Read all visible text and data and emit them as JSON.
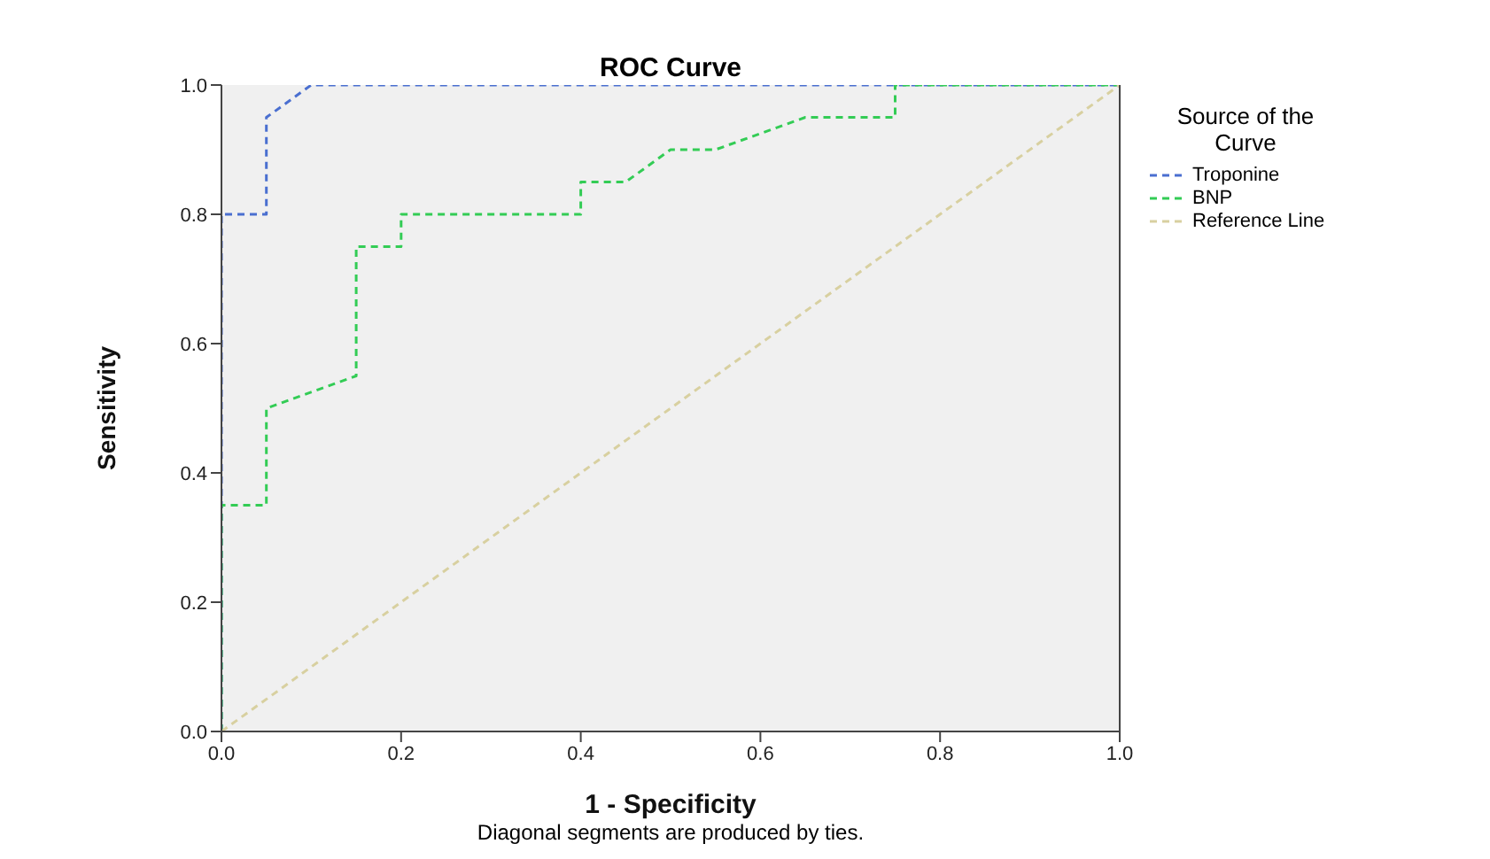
{
  "chart_data": {
    "type": "line",
    "title": "ROC Curve",
    "xlabel": "1 - Specificity",
    "ylabel": "Sensitivity",
    "legend_title": "Source of the Curve",
    "annotations": [
      "Diagonal segments are produced by ties."
    ],
    "series": [
      {
        "name": "Troponine",
        "color": "#4a6fd0",
        "x": [
          0,
          0,
          0.05,
          0.05,
          0.1,
          1
        ],
        "values": [
          0,
          0.8,
          0.8,
          0.95,
          1,
          1
        ]
      },
      {
        "name": "BNP",
        "color": "#33cc55",
        "x": [
          0,
          0,
          0.05,
          0.05,
          0.15,
          0.15,
          0.2,
          0.2,
          0.4,
          0.4,
          0.45,
          0.5,
          0.55,
          0.65,
          0.75,
          0.75,
          1
        ],
        "values": [
          0,
          0.35,
          0.35,
          0.5,
          0.55,
          0.75,
          0.75,
          0.8,
          0.8,
          0.85,
          0.85,
          0.9,
          0.9,
          0.95,
          0.95,
          1,
          1
        ]
      },
      {
        "name": "Reference Line",
        "color": "#d8d0a0",
        "x": [
          0,
          1
        ],
        "values": [
          0,
          1
        ]
      }
    ],
    "xlim": [
      0,
      1
    ],
    "ylim": [
      0,
      1
    ],
    "xticks": [
      {
        "value": 0,
        "label": "0.0"
      },
      {
        "value": 0.2,
        "label": "0.2"
      },
      {
        "value": 0.4,
        "label": "0.4"
      },
      {
        "value": 0.6,
        "label": "0.6"
      },
      {
        "value": 0.8,
        "label": "0.8"
      },
      {
        "value": 1,
        "label": "1.0"
      }
    ],
    "yticks": [
      {
        "value": 0,
        "label": "0.0"
      },
      {
        "value": 0.2,
        "label": "0.2"
      },
      {
        "value": 0.4,
        "label": "0.4"
      },
      {
        "value": 0.6,
        "label": "0.6"
      },
      {
        "value": 0.8,
        "label": "0.8"
      },
      {
        "value": 1,
        "label": "1.0"
      }
    ],
    "grid": false,
    "legend": "right",
    "marker": "none",
    "line_style": "dashed"
  }
}
